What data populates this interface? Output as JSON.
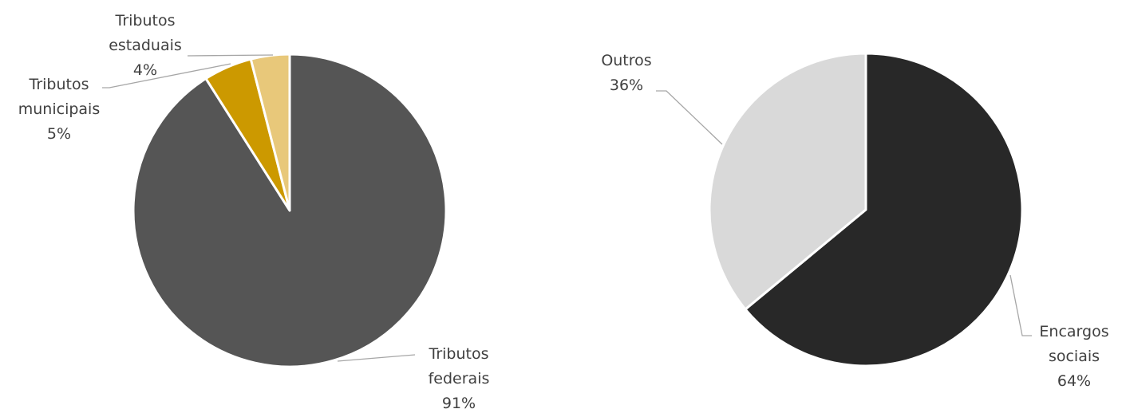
{
  "chart_data": [
    {
      "type": "pie",
      "slices": [
        {
          "label_lines": [
            "Tributos",
            "federais"
          ],
          "value": 91,
          "value_label": "91%",
          "color": "#555555"
        },
        {
          "label_lines": [
            "Tributos",
            "municipais"
          ],
          "value": 5,
          "value_label": "5%",
          "color": "#cc9900"
        },
        {
          "label_lines": [
            "Tributos",
            "estaduais"
          ],
          "value": 4,
          "value_label": "4%",
          "color": "#e8c87a"
        }
      ]
    },
    {
      "type": "pie",
      "slices": [
        {
          "label_lines": [
            "Encargos",
            "sociais"
          ],
          "value": 64,
          "value_label": "64%",
          "color": "#282828"
        },
        {
          "label_lines": [
            "Outros"
          ],
          "value": 36,
          "value_label": "36%",
          "color": "#d9d9d9"
        }
      ]
    }
  ]
}
